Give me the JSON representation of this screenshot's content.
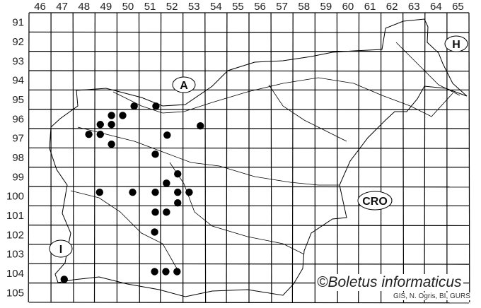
{
  "map": {
    "column_labels": [
      "46",
      "47",
      "48",
      "49",
      "50",
      "51",
      "52",
      "53",
      "54",
      "55",
      "56",
      "57",
      "58",
      "59",
      "60",
      "61",
      "62",
      "63",
      "64",
      "65"
    ],
    "row_labels": [
      "91",
      "92",
      "93",
      "94",
      "95",
      "96",
      "97",
      "98",
      "99",
      "100",
      "101",
      "102",
      "103",
      "104",
      "105"
    ],
    "country_labels": {
      "austria": "A",
      "hungary": "H",
      "croatia": "CRO",
      "italy": "I"
    },
    "dot_color": "#000000",
    "occurrence_points": [
      [
        50.78,
        95.84
      ],
      [
        51.77,
        95.84
      ],
      [
        49.75,
        96.32
      ],
      [
        50.26,
        96.32
      ],
      [
        49.24,
        96.79
      ],
      [
        49.75,
        96.79
      ],
      [
        48.72,
        97.3
      ],
      [
        49.24,
        97.3
      ],
      [
        49.75,
        97.81
      ],
      [
        52.28,
        97.34
      ],
      [
        53.79,
        96.86
      ],
      [
        51.74,
        98.33
      ],
      [
        52.76,
        99.35
      ],
      [
        52.25,
        99.83
      ],
      [
        49.21,
        100.3
      ],
      [
        50.71,
        100.3
      ],
      [
        51.74,
        100.3
      ],
      [
        52.76,
        100.3
      ],
      [
        53.28,
        100.3
      ],
      [
        52.76,
        100.85
      ],
      [
        51.74,
        101.33
      ],
      [
        52.25,
        101.33
      ],
      [
        51.71,
        102.36
      ],
      [
        51.71,
        104.41
      ],
      [
        52.22,
        104.41
      ],
      [
        52.73,
        104.41
      ],
      [
        47.6,
        104.81
      ]
    ]
  },
  "footer": {
    "copyright": "©Boletus informaticus",
    "credit": "GIS, N. Ogris, BI, GURS"
  }
}
